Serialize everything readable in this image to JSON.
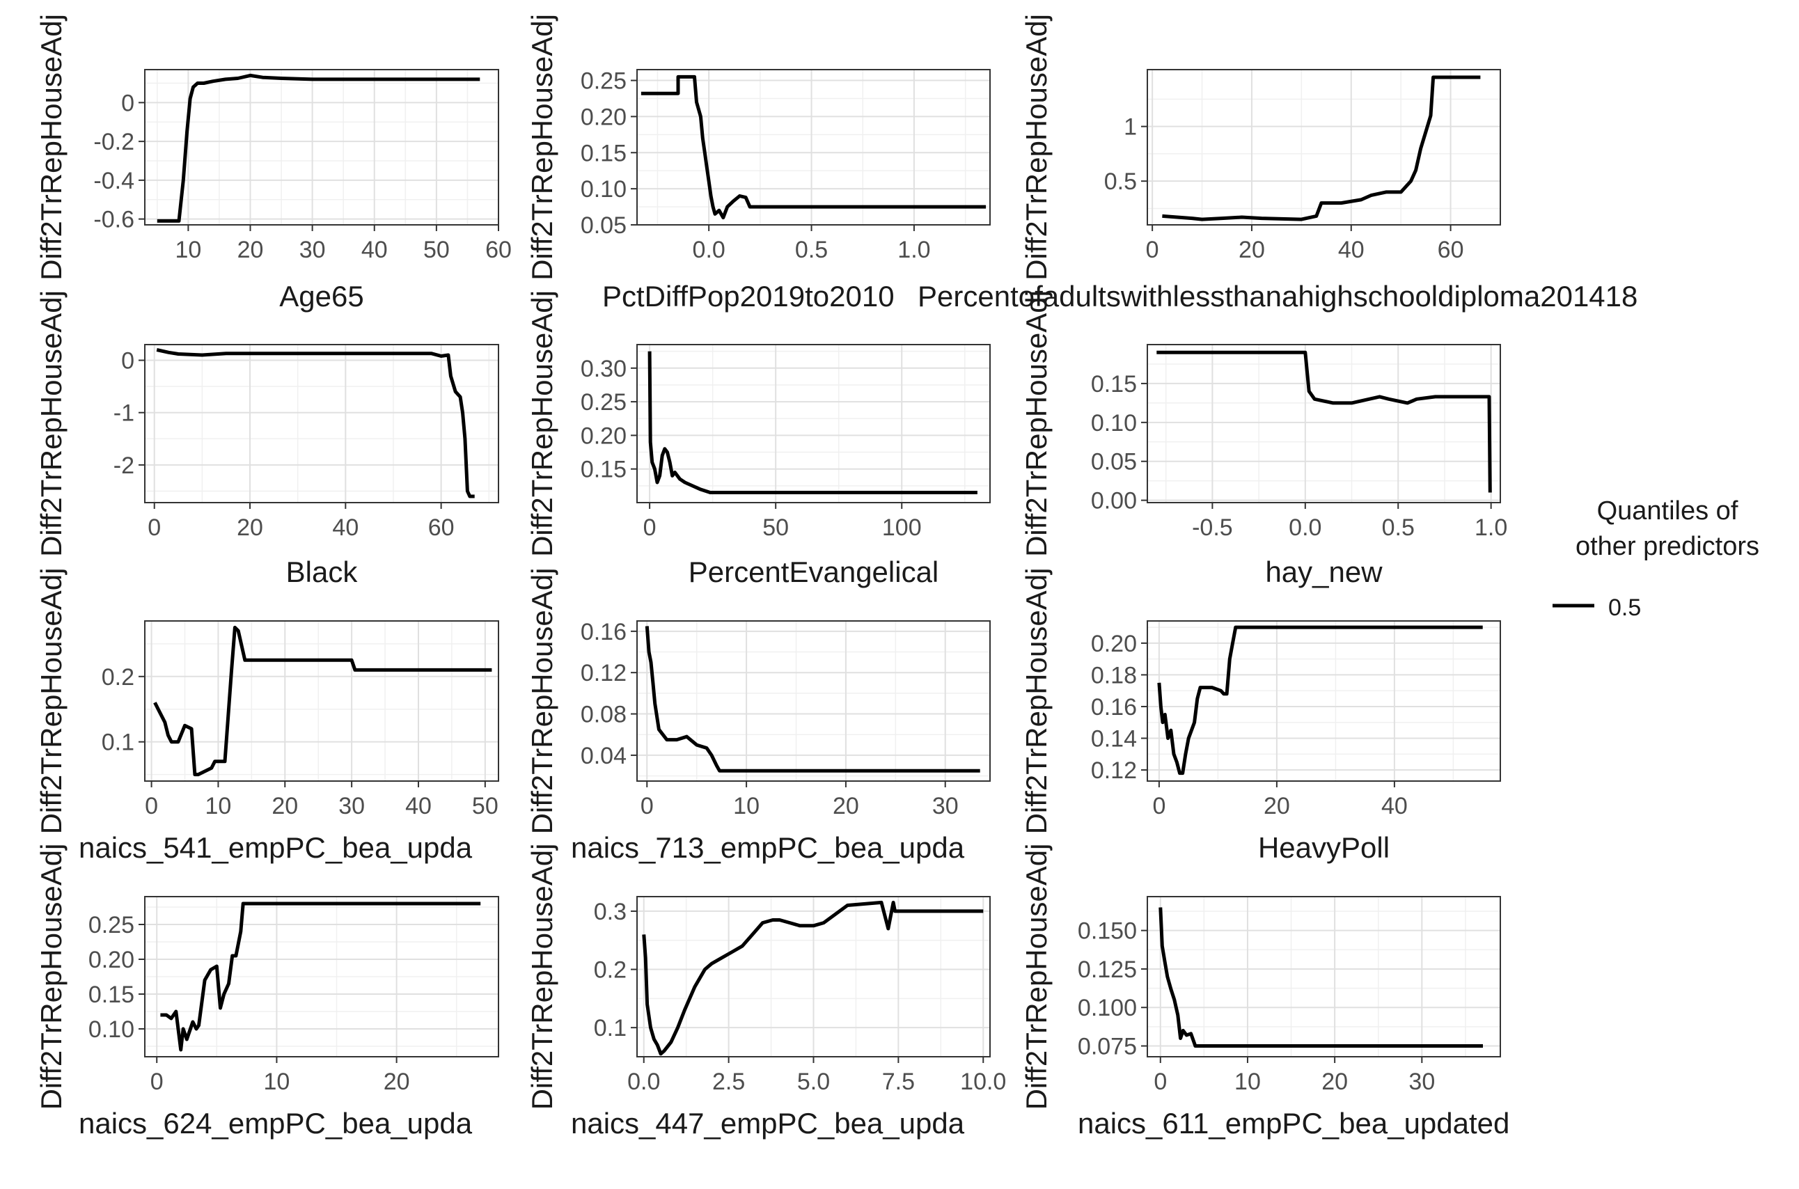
{
  "legend": {
    "title_line1": "Quantiles of",
    "title_line2": "other predictors",
    "items": [
      {
        "label": "0.5",
        "color": "#000000"
      }
    ]
  },
  "chart_data": [
    {
      "type": "line",
      "row": 0,
      "col": 0,
      "xlabel": "Age65",
      "ylabel": "Diff2TrRepHouseAdj",
      "xlim": [
        3,
        60
      ],
      "ylim": [
        -0.63,
        0.17
      ],
      "xticks": [
        10,
        20,
        30,
        40,
        50,
        60
      ],
      "yticks": [
        0.0,
        -0.2,
        -0.4,
        -0.6
      ],
      "grid": true,
      "series": [
        {
          "name": "0.5",
          "x": [
            5,
            8.5,
            9.2,
            9.8,
            10.3,
            10.8,
            11.5,
            12.5,
            14,
            16,
            18,
            20,
            22,
            25,
            30,
            57
          ],
          "y": [
            -0.61,
            -0.61,
            -0.4,
            -0.15,
            0.02,
            0.08,
            0.1,
            0.1,
            0.11,
            0.12,
            0.125,
            0.14,
            0.13,
            0.125,
            0.12,
            0.12
          ]
        }
      ]
    },
    {
      "type": "line",
      "row": 0,
      "col": 1,
      "xlabel": "PctDiffPop2019to2010",
      "ylabel": "Diff2TrRepHouseAdj",
      "xlim": [
        -0.35,
        1.37
      ],
      "ylim": [
        0.05,
        0.265
      ],
      "xticks": [
        0.0,
        0.5,
        1.0
      ],
      "yticks": [
        0.25,
        0.2,
        0.15,
        0.1,
        0.05
      ],
      "tick_text": [
        "0.25",
        "0.20",
        "0.15",
        "0.10",
        "0.05"
      ],
      "grid": true,
      "series": [
        {
          "name": "0.5",
          "x": [
            -0.33,
            -0.15,
            -0.15,
            -0.07,
            -0.06,
            -0.04,
            -0.03,
            -0.02,
            -0.01,
            0.0,
            0.01,
            0.02,
            0.03,
            0.05,
            0.07,
            0.09,
            0.12,
            0.15,
            0.18,
            0.2,
            0.25,
            1.35
          ],
          "y": [
            0.232,
            0.232,
            0.255,
            0.255,
            0.22,
            0.2,
            0.17,
            0.15,
            0.13,
            0.11,
            0.09,
            0.075,
            0.065,
            0.07,
            0.06,
            0.075,
            0.083,
            0.09,
            0.088,
            0.075,
            0.075,
            0.075
          ]
        }
      ]
    },
    {
      "type": "line",
      "row": 0,
      "col": 2,
      "xlabel": "Percentofadultswithlessthanahighschooldiploma201418",
      "ylabel": "Diff2TrRepHouseAdj",
      "xlim": [
        -1,
        70
      ],
      "ylim": [
        0.1,
        1.52
      ],
      "xticks": [
        0,
        20,
        40,
        60
      ],
      "yticks": [
        1.0,
        0.5
      ],
      "grid": true,
      "series": [
        {
          "name": "0.5",
          "x": [
            2,
            5,
            8,
            10,
            14,
            18,
            22,
            26,
            30,
            33,
            34,
            38,
            42,
            44,
            47,
            50,
            52,
            53,
            54,
            55,
            56,
            56.5,
            66
          ],
          "y": [
            0.18,
            0.17,
            0.16,
            0.15,
            0.16,
            0.17,
            0.16,
            0.155,
            0.15,
            0.18,
            0.3,
            0.3,
            0.33,
            0.37,
            0.4,
            0.4,
            0.5,
            0.6,
            0.8,
            0.95,
            1.1,
            1.45,
            1.45
          ]
        }
      ]
    },
    {
      "type": "line",
      "row": 1,
      "col": 0,
      "xlabel": "Black",
      "ylabel": "Diff2TrRepHouseAdj",
      "xlim": [
        -2,
        72
      ],
      "ylim": [
        -2.72,
        0.3
      ],
      "xticks": [
        0,
        20,
        40,
        60
      ],
      "yticks": [
        0,
        -1,
        -2
      ],
      "grid": true,
      "series": [
        {
          "name": "0.5",
          "x": [
            0.5,
            3,
            5,
            10,
            15,
            20,
            30,
            40,
            50,
            58,
            60,
            61.5,
            62,
            63,
            64,
            64.5,
            65,
            65.5,
            66,
            67
          ],
          "y": [
            0.2,
            0.15,
            0.12,
            0.1,
            0.13,
            0.13,
            0.13,
            0.13,
            0.13,
            0.13,
            0.08,
            0.1,
            -0.3,
            -0.6,
            -0.7,
            -1.0,
            -1.5,
            -2.5,
            -2.6,
            -2.6
          ]
        }
      ]
    },
    {
      "type": "line",
      "row": 1,
      "col": 1,
      "xlabel": "PercentEvangelical",
      "ylabel": "Diff2TrRepHouseAdj",
      "xlim": [
        -5,
        135
      ],
      "ylim": [
        0.1,
        0.335
      ],
      "xticks": [
        0,
        50,
        100
      ],
      "yticks": [
        0.3,
        0.25,
        0.2,
        0.15
      ],
      "tick_text": [
        "0.30",
        "0.25",
        "0.20",
        "0.15"
      ],
      "grid": true,
      "series": [
        {
          "name": "0.5",
          "x": [
            0,
            0.3,
            1,
            2,
            3,
            4,
            5,
            6,
            7,
            8,
            9,
            10,
            12,
            14,
            17,
            20,
            24,
            30,
            40,
            130
          ],
          "y": [
            0.325,
            0.19,
            0.16,
            0.15,
            0.13,
            0.14,
            0.17,
            0.18,
            0.175,
            0.16,
            0.14,
            0.145,
            0.135,
            0.13,
            0.125,
            0.12,
            0.115,
            0.115,
            0.115,
            0.115
          ]
        }
      ]
    },
    {
      "type": "line",
      "row": 1,
      "col": 2,
      "xlabel": "hay_new",
      "ylabel": "Diff2TrRepHouseAdj",
      "xlim": [
        -0.85,
        1.05
      ],
      "ylim": [
        -0.003,
        0.2
      ],
      "xticks": [
        -0.5,
        0.0,
        0.5,
        1.0
      ],
      "yticks": [
        0.15,
        0.1,
        0.05,
        0.0
      ],
      "tick_text": [
        "0.15",
        "0.10",
        "0.05",
        "0.00"
      ],
      "grid": true,
      "series": [
        {
          "name": "0.5",
          "x": [
            -0.8,
            0.0,
            0.02,
            0.05,
            0.15,
            0.25,
            0.4,
            0.45,
            0.55,
            0.6,
            0.7,
            0.99,
            0.995
          ],
          "y": [
            0.19,
            0.19,
            0.14,
            0.13,
            0.125,
            0.125,
            0.133,
            0.13,
            0.125,
            0.13,
            0.133,
            0.133,
            0.01
          ]
        }
      ]
    },
    {
      "type": "line",
      "row": 2,
      "col": 0,
      "xlabel": "naics_541_empPC_bea_upda",
      "ylabel": "Diff2TrRepHouseAdj",
      "xlim": [
        -1,
        52
      ],
      "ylim": [
        0.04,
        0.285
      ],
      "xticks": [
        0,
        10,
        20,
        30,
        40,
        50
      ],
      "yticks": [
        0.2,
        0.1
      ],
      "grid": true,
      "series": [
        {
          "name": "0.5",
          "x": [
            0.5,
            1,
            1.5,
            2,
            2.5,
            3,
            4,
            5,
            6,
            6.5,
            7,
            9,
            9.5,
            11,
            11.5,
            12,
            12.5,
            13,
            14,
            30,
            30.5,
            51
          ],
          "y": [
            0.16,
            0.15,
            0.14,
            0.13,
            0.11,
            0.1,
            0.1,
            0.125,
            0.12,
            0.05,
            0.05,
            0.06,
            0.07,
            0.07,
            0.14,
            0.21,
            0.275,
            0.27,
            0.225,
            0.225,
            0.21,
            0.21
          ]
        }
      ]
    },
    {
      "type": "line",
      "row": 2,
      "col": 1,
      "xlabel": "naics_713_empPC_bea_upda",
      "ylabel": "Diff2TrRepHouseAdj",
      "xlim": [
        -1,
        34.5
      ],
      "ylim": [
        0.015,
        0.17
      ],
      "xticks": [
        0,
        10,
        20,
        30
      ],
      "yticks": [
        0.16,
        0.12,
        0.08,
        0.04
      ],
      "grid": true,
      "series": [
        {
          "name": "0.5",
          "x": [
            0,
            0.2,
            0.4,
            0.6,
            0.8,
            1.2,
            2,
            3,
            4,
            5,
            6,
            6.5,
            7,
            7.3,
            33.5
          ],
          "y": [
            0.165,
            0.14,
            0.13,
            0.11,
            0.09,
            0.065,
            0.055,
            0.055,
            0.058,
            0.05,
            0.047,
            0.04,
            0.03,
            0.025,
            0.025
          ]
        }
      ]
    },
    {
      "type": "line",
      "row": 2,
      "col": 2,
      "xlabel": "HeavyPoll",
      "ylabel": "Diff2TrRepHouseAdj",
      "xlim": [
        -2,
        58
      ],
      "ylim": [
        0.113,
        0.214
      ],
      "xticks": [
        0,
        20,
        40
      ],
      "yticks": [
        0.2,
        0.18,
        0.16,
        0.14,
        0.12
      ],
      "tick_text": [
        "0.20",
        "0.18",
        "0.16",
        "0.14",
        "0.12"
      ],
      "grid": true,
      "series": [
        {
          "name": "0.5",
          "x": [
            0,
            0.3,
            0.6,
            1,
            1.5,
            2,
            2.5,
            3,
            3.5,
            4,
            4.5,
            5,
            6,
            6.5,
            7,
            8,
            9,
            10.5,
            11,
            11.5,
            12,
            12.5,
            13,
            55
          ],
          "y": [
            0.175,
            0.16,
            0.15,
            0.155,
            0.14,
            0.145,
            0.13,
            0.125,
            0.118,
            0.118,
            0.13,
            0.14,
            0.15,
            0.165,
            0.172,
            0.172,
            0.172,
            0.17,
            0.168,
            0.168,
            0.19,
            0.2,
            0.21,
            0.21
          ]
        }
      ]
    },
    {
      "type": "line",
      "row": 3,
      "col": 0,
      "xlabel": "naics_624_empPC_bea_upda",
      "ylabel": "Diff2TrRepHouseAdj",
      "xlim": [
        -1,
        28.5
      ],
      "ylim": [
        0.06,
        0.29
      ],
      "xticks": [
        0,
        10,
        20
      ],
      "yticks": [
        0.25,
        0.2,
        0.15,
        0.1
      ],
      "tick_text": [
        "0.25",
        "0.20",
        "0.15",
        "0.10"
      ],
      "grid": true,
      "series": [
        {
          "name": "0.5",
          "x": [
            0.3,
            0.8,
            1.2,
            1.6,
            2,
            2.2,
            2.5,
            3,
            3.3,
            3.5,
            4,
            4.5,
            5,
            5.3,
            5.6,
            6,
            6.3,
            6.6,
            7,
            7.2,
            27
          ],
          "y": [
            0.12,
            0.12,
            0.115,
            0.125,
            0.07,
            0.1,
            0.085,
            0.11,
            0.1,
            0.105,
            0.17,
            0.185,
            0.19,
            0.13,
            0.15,
            0.165,
            0.205,
            0.205,
            0.24,
            0.28,
            0.28
          ]
        }
      ]
    },
    {
      "type": "line",
      "row": 3,
      "col": 1,
      "xlabel": "naics_447_empPC_bea_upda",
      "ylabel": "Diff2TrRepHouseAdj",
      "xlim": [
        -0.2,
        10.2
      ],
      "ylim": [
        0.05,
        0.325
      ],
      "xticks": [
        0.0,
        2.5,
        5.0,
        7.5,
        10.0
      ],
      "yticks": [
        0.3,
        0.2,
        0.1
      ],
      "tick_text": [
        "0.3",
        "0.2",
        "0.1"
      ],
      "grid": true,
      "series": [
        {
          "name": "0.5",
          "x": [
            0,
            0.05,
            0.1,
            0.2,
            0.3,
            0.4,
            0.5,
            0.6,
            0.8,
            1,
            1.2,
            1.5,
            1.8,
            2,
            2.3,
            2.6,
            2.9,
            3.2,
            3.5,
            3.8,
            4,
            4.3,
            4.6,
            5,
            5.3,
            6,
            7.0,
            7.2,
            7.35,
            7.4,
            7.5,
            10
          ],
          "y": [
            0.26,
            0.22,
            0.14,
            0.1,
            0.08,
            0.07,
            0.055,
            0.06,
            0.075,
            0.1,
            0.13,
            0.17,
            0.2,
            0.21,
            0.22,
            0.23,
            0.24,
            0.26,
            0.28,
            0.285,
            0.285,
            0.28,
            0.275,
            0.275,
            0.28,
            0.31,
            0.315,
            0.27,
            0.315,
            0.3,
            0.3,
            0.3
          ]
        }
      ]
    },
    {
      "type": "line",
      "row": 3,
      "col": 2,
      "xlabel": "naics_611_empPC_bea_updated",
      "ylabel": "Diff2TrRepHouseAdj",
      "xlim": [
        -1.5,
        39
      ],
      "ylim": [
        0.068,
        0.172
      ],
      "xticks": [
        0,
        10,
        20,
        30
      ],
      "yticks": [
        0.15,
        0.125,
        0.1,
        0.075
      ],
      "tick_text": [
        "0.150",
        "0.125",
        "0.100",
        "0.075"
      ],
      "grid": true,
      "series": [
        {
          "name": "0.5",
          "x": [
            0,
            0.2,
            0.5,
            0.8,
            1.2,
            1.6,
            2,
            2.3,
            2.6,
            3,
            3.5,
            4,
            37
          ],
          "y": [
            0.165,
            0.14,
            0.13,
            0.12,
            0.112,
            0.105,
            0.095,
            0.08,
            0.085,
            0.082,
            0.083,
            0.075,
            0.075
          ]
        }
      ]
    }
  ]
}
